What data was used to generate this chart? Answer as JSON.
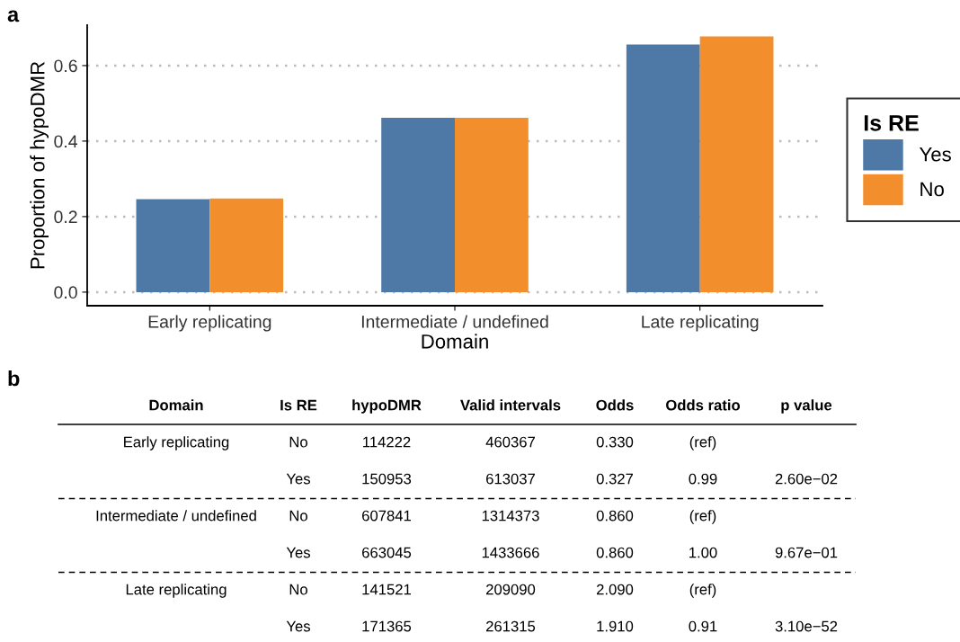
{
  "chart_data": [
    {
      "type": "bar",
      "title": "a",
      "xlabel": "Domain",
      "ylabel": "Proportion of hypoDMR",
      "legend_title": "Is RE",
      "categories": [
        "Early replicating",
        "Intermediate / undefined",
        "Late replicating"
      ],
      "series": [
        {
          "name": "Yes",
          "color": "#4e79a7",
          "values": [
            0.246,
            0.462,
            0.656
          ]
        },
        {
          "name": "No",
          "color": "#f28e2b",
          "values": [
            0.248,
            0.462,
            0.677
          ]
        }
      ],
      "ylim": [
        -0.036,
        0.707
      ],
      "yticks": [
        {
          "value": 0,
          "label": "0.0"
        },
        0.2,
        0.4,
        0.6
      ],
      "grid": "y",
      "legend": "right"
    },
    {
      "type": "other",
      "title": "b",
      "categories": [
        "Domain",
        "Is RE",
        "hypoDMR",
        "Valid intervals",
        "Odds",
        "Odds ratio",
        "p value"
      ],
      "annotations": [
        "Early replicating",
        "No",
        "114222",
        "460367",
        "0.330",
        "(ref)",
        null,
        null,
        "Yes",
        "150953",
        "613037",
        "0.327",
        "0.99",
        "2.60e−02",
        "Intermediate / undefined",
        "No",
        "607841",
        "1314373",
        "0.860",
        "(ref)",
        null,
        null,
        "Yes",
        "663045",
        "1433666",
        "0.860",
        "1.00",
        "9.67e−01",
        "Late replicating",
        "No",
        "141521",
        "209090",
        "2.090",
        "(ref)",
        null,
        null,
        "Yes",
        "171365",
        "261315",
        "1.910",
        "0.91",
        "3.10e−52"
      ]
    }
  ]
}
